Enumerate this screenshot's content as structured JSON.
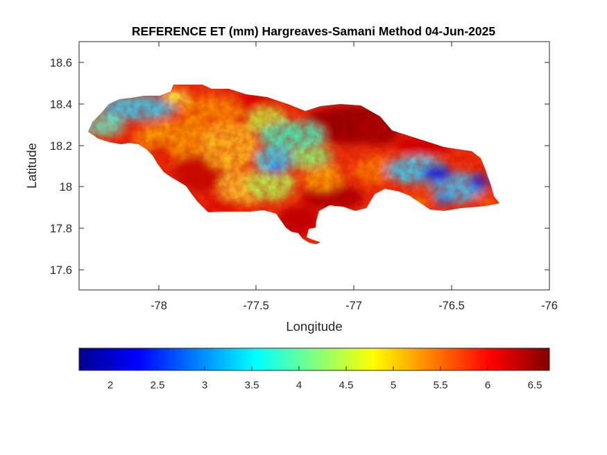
{
  "title": "REFERENCE ET (mm) Hargreaves-Samani Method  04-Jun-2025",
  "x_axis": {
    "label": "Longitude",
    "ticks": [
      "-78",
      "-77.5",
      "-77",
      "-76.5",
      "-76"
    ]
  },
  "y_axis": {
    "label": "Latitude",
    "ticks": [
      "18.6",
      "18.4",
      "18.2",
      "18",
      "17.8",
      "17.6"
    ]
  },
  "colorbar": {
    "colormap": "jet",
    "ticks": [
      "2",
      "2.5",
      "3",
      "3.5",
      "4",
      "4.5",
      "5",
      "5.5",
      "6",
      "6.5"
    ]
  },
  "chart_data": {
    "type": "heatmap",
    "title": "REFERENCE ET (mm) Hargreaves-Samani Method  04-Jun-2025",
    "xlabel": "Longitude",
    "ylabel": "Latitude",
    "xlim": [
      -78.4,
      -76
    ],
    "ylim": [
      17.5,
      18.7
    ],
    "xticks": [
      -78,
      -77.5,
      -77,
      -76.5,
      -76
    ],
    "yticks": [
      17.6,
      17.8,
      18,
      18.2,
      18.4,
      18.6
    ],
    "color_range": [
      1.65,
      6.65
    ],
    "colorbar_ticks": [
      2,
      2.5,
      3,
      3.5,
      4,
      4.5,
      5,
      5.5,
      6,
      6.5
    ],
    "colorbar_position": "bottom",
    "grid": false,
    "region": "Jamaica",
    "colormap": "jet",
    "value_summary": [
      {
        "area": "western end (~-78.3, 18.35)",
        "approx_value": 3.5
      },
      {
        "area": "central interior (~-77.4, 18.2)",
        "approx_value": 4.0
      },
      {
        "area": "north-east (~-77.0, 18.35)",
        "approx_value": 6.5
      },
      {
        "area": "south-central (~-77.1, 17.95)",
        "approx_value": 6.2
      },
      {
        "area": "eastern (~-76.45, 18.05)",
        "approx_value": 2.0
      },
      {
        "area": "south-west (~-77.9, 18.0)",
        "approx_value": 6.0
      }
    ]
  }
}
